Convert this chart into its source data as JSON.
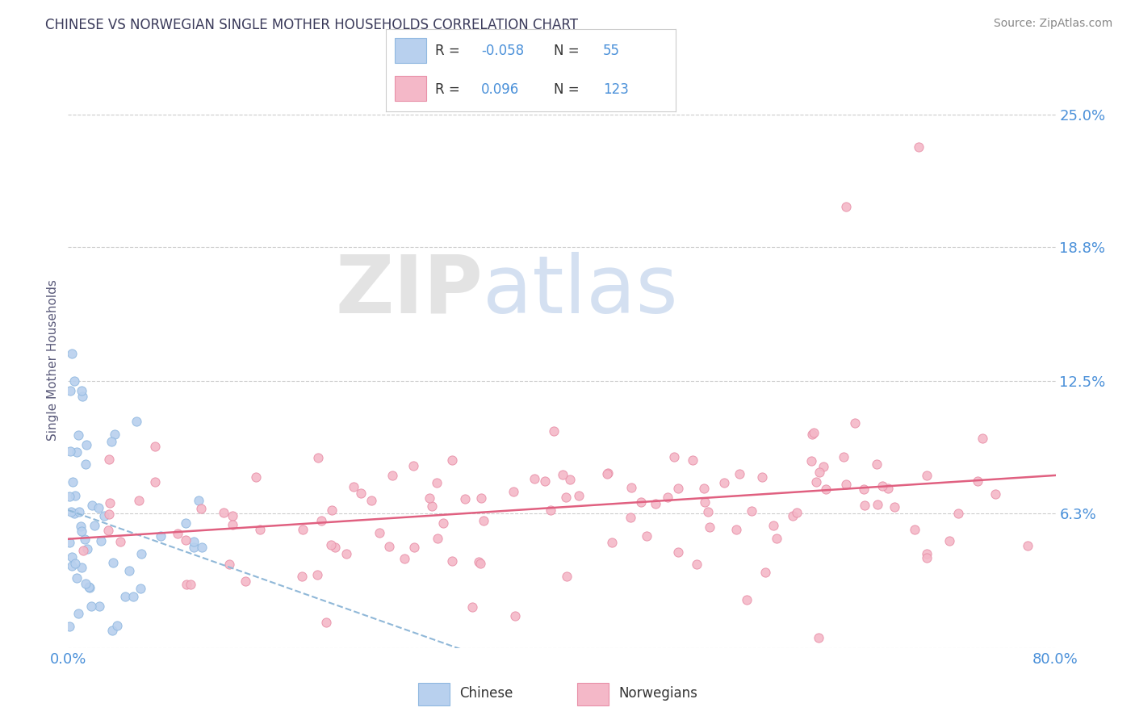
{
  "title": "CHINESE VS NORWEGIAN SINGLE MOTHER HOUSEHOLDS CORRELATION CHART",
  "source": "Source: ZipAtlas.com",
  "ylabel": "Single Mother Households",
  "xlim": [
    0.0,
    0.8
  ],
  "ylim": [
    0.0,
    0.27
  ],
  "yticks": [
    0.0,
    0.063,
    0.125,
    0.188,
    0.25
  ],
  "ytick_labels": [
    "",
    "6.3%",
    "12.5%",
    "18.8%",
    "25.0%"
  ],
  "xticks": [
    0.0,
    0.8
  ],
  "xtick_labels": [
    "0.0%",
    "80.0%"
  ],
  "legend_entries": [
    {
      "label": "Chinese",
      "color": "#b8d0ee",
      "edge_color": "#90b8e0",
      "R": "-0.058",
      "N": "55"
    },
    {
      "label": "Norwegians",
      "color": "#f4b8c8",
      "edge_color": "#e890a8",
      "R": "0.096",
      "N": "123"
    }
  ],
  "watermark_zip": "ZIP",
  "watermark_atlas": "atlas",
  "background_color": "#ffffff",
  "grid_color": "#cccccc",
  "title_color": "#3a3a5a",
  "label_color": "#5a5a7a",
  "tick_color": "#4a90d9",
  "source_color": "#888888",
  "trend_chinese_color": "#90b8d8",
  "trend_norwegian_color": "#e06080"
}
